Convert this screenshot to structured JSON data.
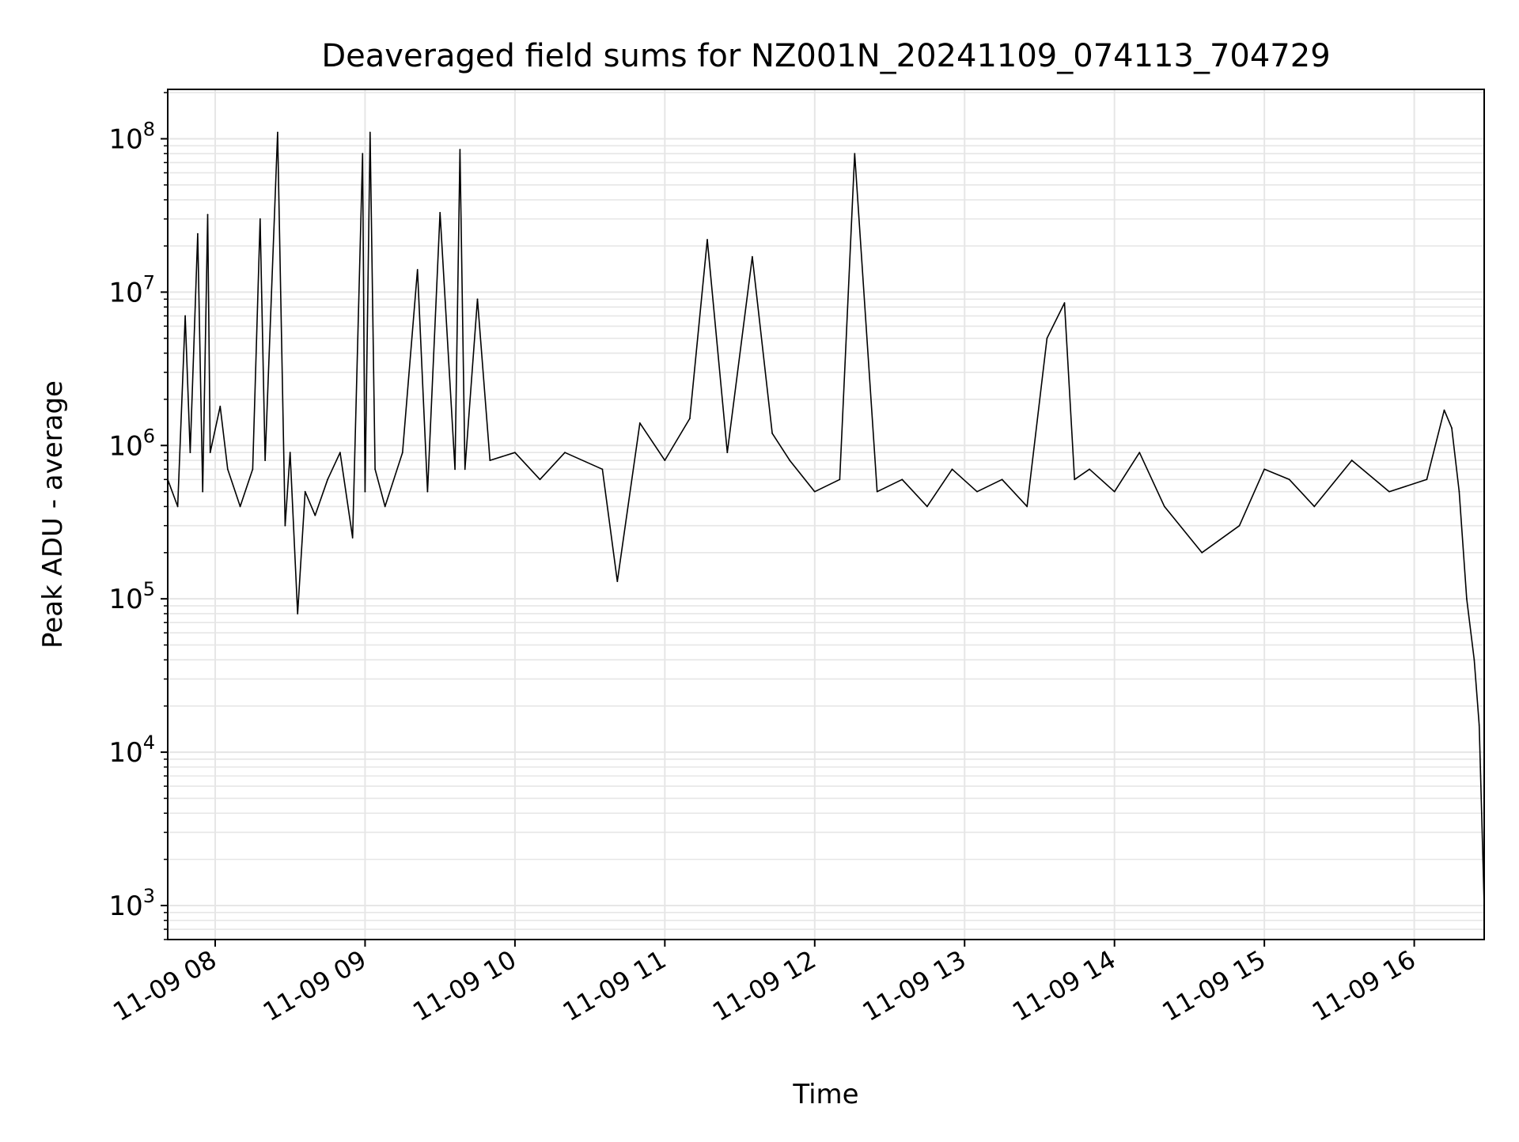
{
  "chart_data": {
    "type": "line",
    "title": "Deaveraged field sums for NZ001N_20241109_074113_704729",
    "xlabel": "Time",
    "ylabel": "Peak ADU - average",
    "yscale": "log",
    "ylim": [
      600,
      210000000
    ],
    "xlim": [
      "2024-11-09 07:41",
      "2024-11-09 16:28"
    ],
    "x_ticks": [
      {
        "value": "2024-11-09 08:00",
        "label": "11-09 08"
      },
      {
        "value": "2024-11-09 09:00",
        "label": "11-09 09"
      },
      {
        "value": "2024-11-09 10:00",
        "label": "11-09 10"
      },
      {
        "value": "2024-11-09 11:00",
        "label": "11-09 11"
      },
      {
        "value": "2024-11-09 12:00",
        "label": "11-09 12"
      },
      {
        "value": "2024-11-09 13:00",
        "label": "11-09 13"
      },
      {
        "value": "2024-11-09 14:00",
        "label": "11-09 14"
      },
      {
        "value": "2024-11-09 15:00",
        "label": "11-09 15"
      },
      {
        "value": "2024-11-09 16:00",
        "label": "11-09 16"
      }
    ],
    "y_ticks": [
      {
        "value": 1000,
        "base": "10",
        "exp": "3"
      },
      {
        "value": 10000,
        "base": "10",
        "exp": "4"
      },
      {
        "value": 100000,
        "base": "10",
        "exp": "5"
      },
      {
        "value": 1000000,
        "base": "10",
        "exp": "6"
      },
      {
        "value": 10000000,
        "base": "10",
        "exp": "7"
      },
      {
        "value": 100000000,
        "base": "10",
        "exp": "8"
      }
    ],
    "grid": true,
    "line_color": "#000000",
    "grid_color": "#e6e6e6",
    "series": [
      {
        "x": [
          "2024-11-09 07:41",
          "2024-11-09 07:45",
          "2024-11-09 07:48",
          "2024-11-09 07:50",
          "2024-11-09 07:53",
          "2024-11-09 07:55",
          "2024-11-09 07:57",
          "2024-11-09 07:58",
          "2024-11-09 08:02",
          "2024-11-09 08:05",
          "2024-11-09 08:10",
          "2024-11-09 08:15",
          "2024-11-09 08:18",
          "2024-11-09 08:20",
          "2024-11-09 08:25",
          "2024-11-09 08:28",
          "2024-11-09 08:30",
          "2024-11-09 08:33",
          "2024-11-09 08:36",
          "2024-11-09 08:40",
          "2024-11-09 08:45",
          "2024-11-09 08:50",
          "2024-11-09 08:55",
          "2024-11-09 08:59",
          "2024-11-09 09:00",
          "2024-11-09 09:02",
          "2024-11-09 09:04",
          "2024-11-09 09:08",
          "2024-11-09 09:15",
          "2024-11-09 09:21",
          "2024-11-09 09:25",
          "2024-11-09 09:30",
          "2024-11-09 09:36",
          "2024-11-09 09:38",
          "2024-11-09 09:40",
          "2024-11-09 09:45",
          "2024-11-09 09:50",
          "2024-11-09 10:00",
          "2024-11-09 10:10",
          "2024-11-09 10:20",
          "2024-11-09 10:35",
          "2024-11-09 10:41",
          "2024-11-09 10:50",
          "2024-11-09 11:00",
          "2024-11-09 11:10",
          "2024-11-09 11:17",
          "2024-11-09 11:25",
          "2024-11-09 11:35",
          "2024-11-09 11:43",
          "2024-11-09 11:50",
          "2024-11-09 12:00",
          "2024-11-09 12:10",
          "2024-11-09 12:16",
          "2024-11-09 12:25",
          "2024-11-09 12:35",
          "2024-11-09 12:45",
          "2024-11-09 12:55",
          "2024-11-09 13:05",
          "2024-11-09 13:15",
          "2024-11-09 13:25",
          "2024-11-09 13:33",
          "2024-11-09 13:40",
          "2024-11-09 13:44",
          "2024-11-09 13:50",
          "2024-11-09 14:00",
          "2024-11-09 14:10",
          "2024-11-09 14:20",
          "2024-11-09 14:35",
          "2024-11-09 14:50",
          "2024-11-09 15:00",
          "2024-11-09 15:10",
          "2024-11-09 15:20",
          "2024-11-09 15:35",
          "2024-11-09 15:50",
          "2024-11-09 16:05",
          "2024-11-09 16:12",
          "2024-11-09 16:15",
          "2024-11-09 16:18",
          "2024-11-09 16:21",
          "2024-11-09 16:24",
          "2024-11-09 16:26",
          "2024-11-09 16:28"
        ],
        "values": [
          600000,
          400000,
          7000000,
          900000,
          24000000,
          500000,
          32000000,
          900000,
          1800000,
          700000,
          400000,
          700000,
          30000000,
          800000,
          110000000,
          300000,
          900000,
          80000,
          500000,
          350000,
          600000,
          900000,
          250000,
          80000000,
          500000,
          110000000,
          700000,
          400000,
          900000,
          14000000,
          500000,
          33000000,
          700000,
          85000000,
          700000,
          9000000,
          800000,
          900000,
          600000,
          900000,
          700000,
          130000,
          1400000,
          800000,
          1500000,
          22000000,
          900000,
          17000000,
          1200000,
          800000,
          500000,
          600000,
          80000000,
          500000,
          600000,
          400000,
          700000,
          500000,
          600000,
          400000,
          5000000,
          8500000,
          600000,
          700000,
          500000,
          900000,
          400000,
          200000,
          300000,
          700000,
          600000,
          400000,
          800000,
          500000,
          600000,
          1700000,
          1300000,
          500000,
          100000,
          40000,
          15000,
          1000
        ]
      }
    ]
  }
}
